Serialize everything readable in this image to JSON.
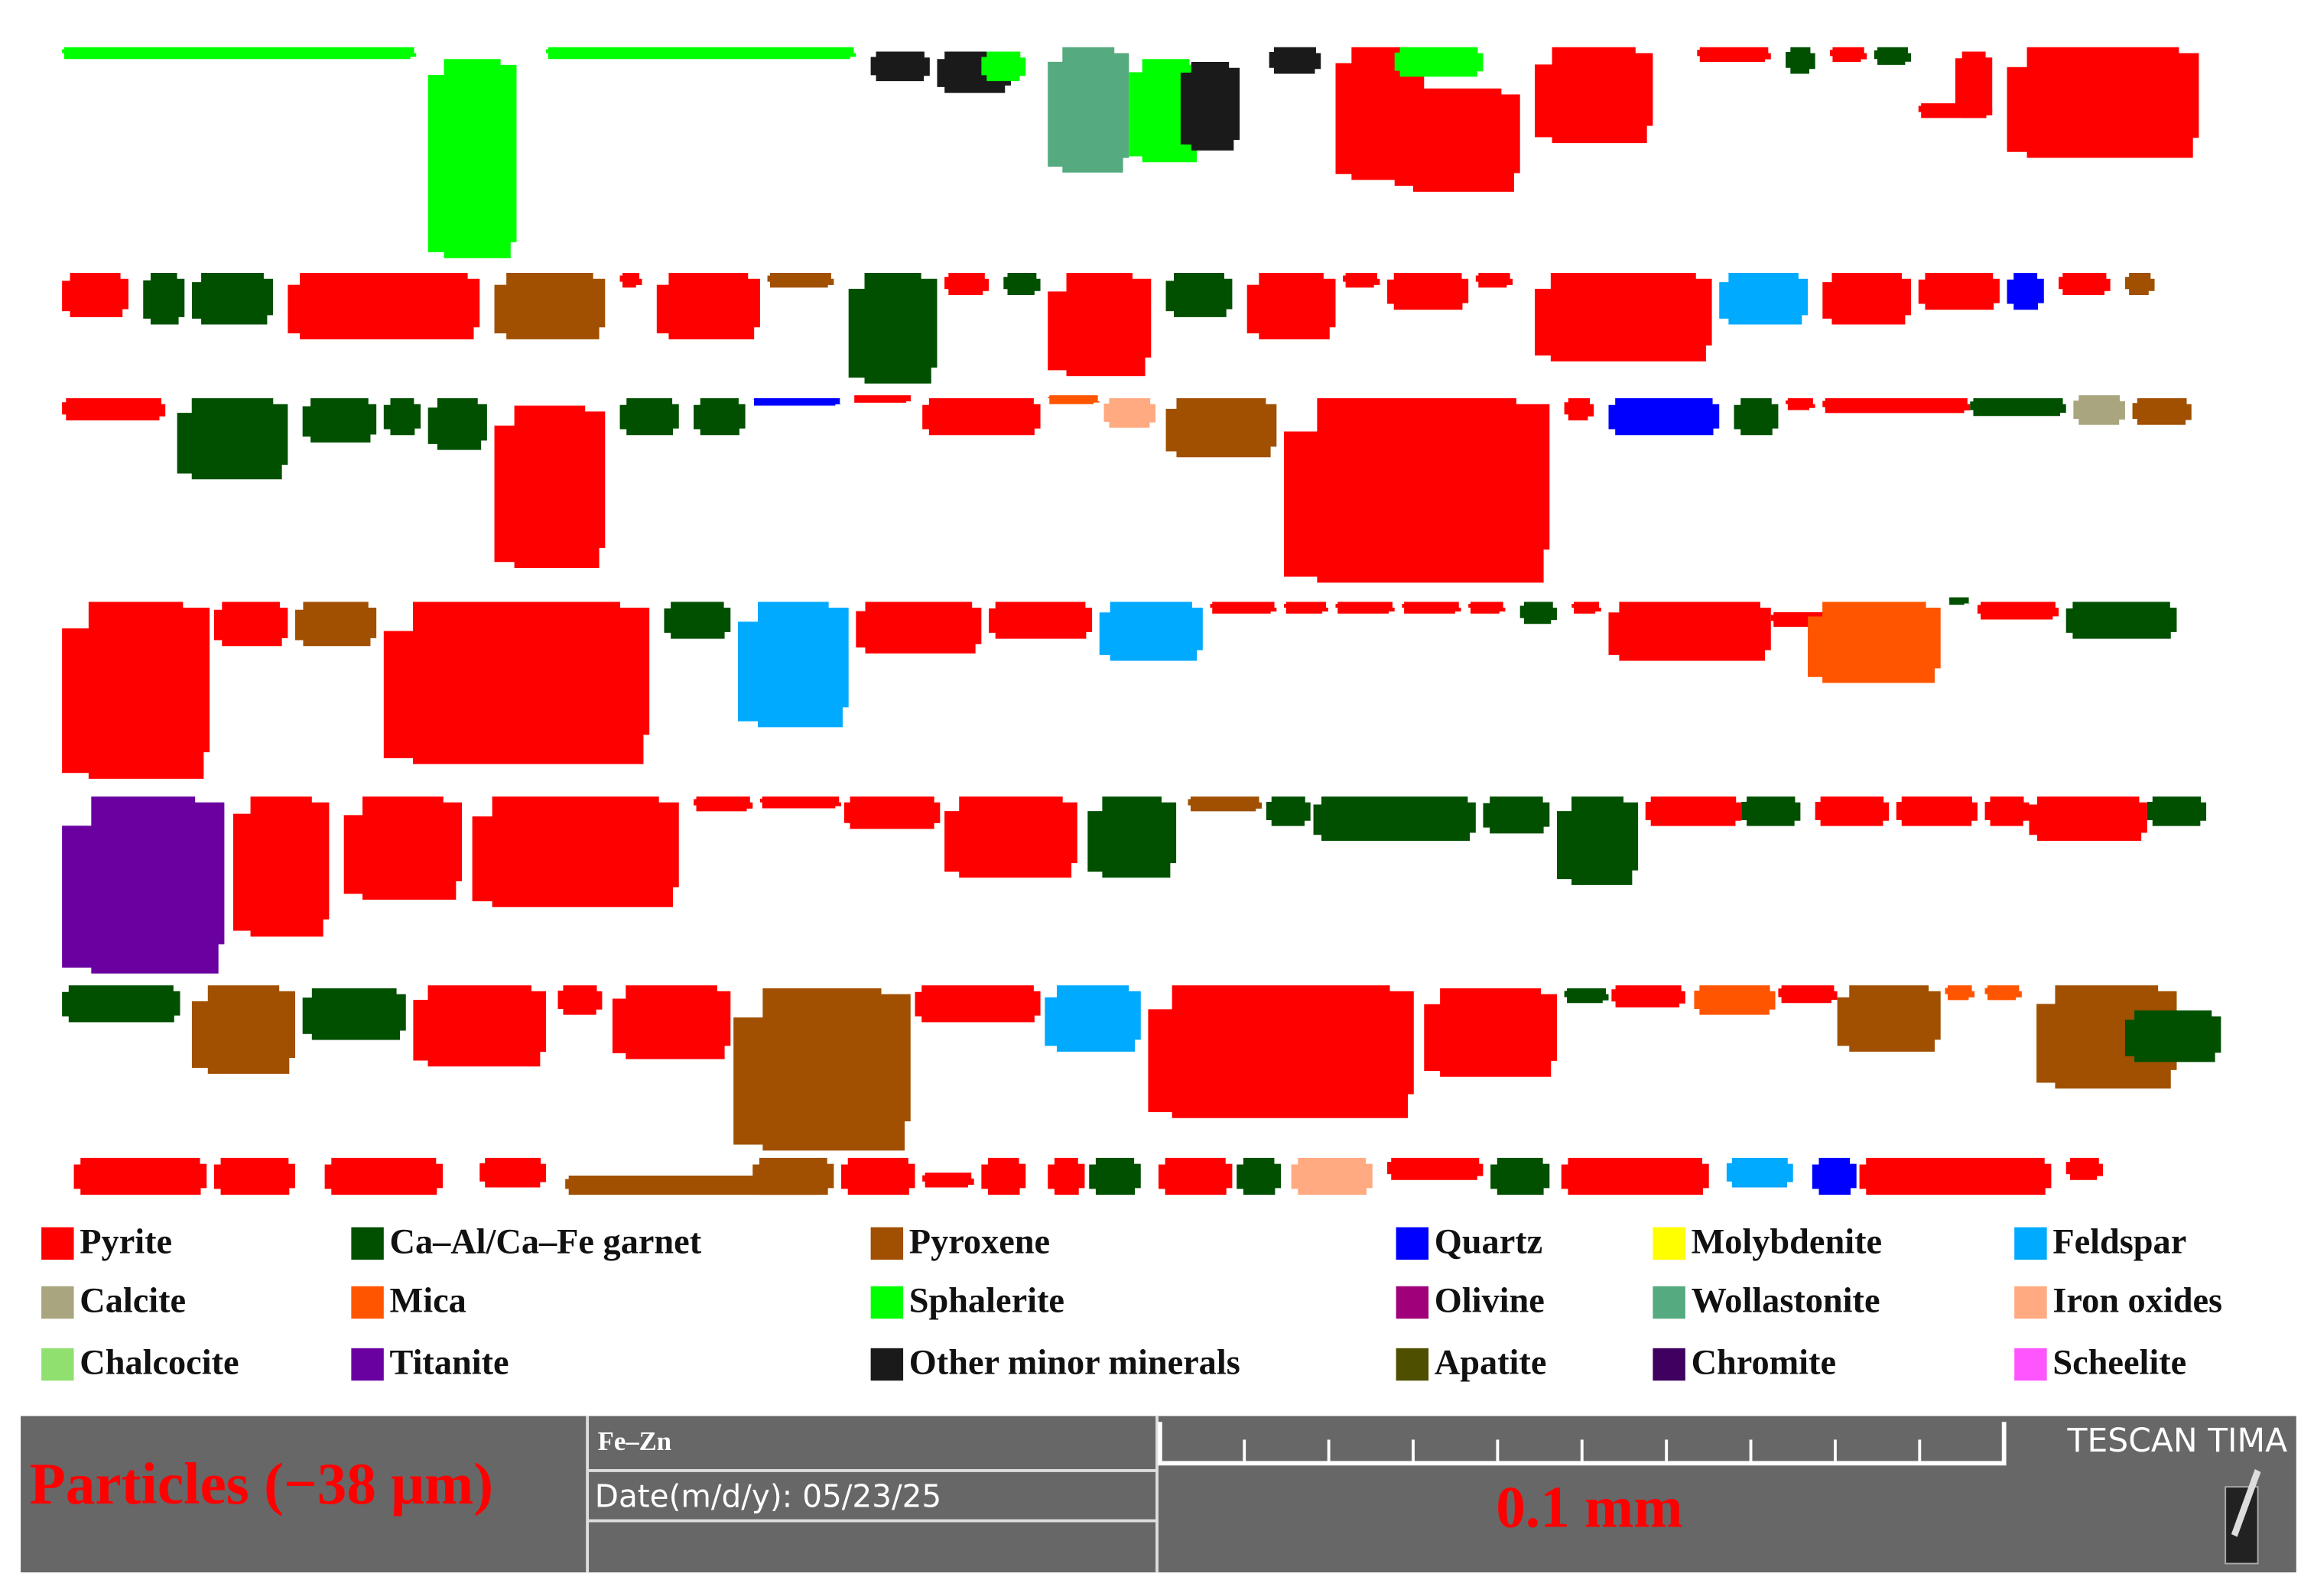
{
  "legend": [
    {
      "label": "Pyrite",
      "color": "#ff0000"
    },
    {
      "label": "Calcite",
      "color": "#a8a57f"
    },
    {
      "label": "Chalcocite",
      "color": "#90e070"
    },
    {
      "label": "Ca–Al/Ca–Fe garnet",
      "color": "#005000"
    },
    {
      "label": "Mica",
      "color": "#ff5500"
    },
    {
      "label": "Titanite",
      "color": "#6a00a0"
    },
    {
      "label": "Pyroxene",
      "color": "#a05000"
    },
    {
      "label": "Sphalerite",
      "color": "#00ff00"
    },
    {
      "label": "Other minor minerals",
      "color": "#1a1a1a"
    },
    {
      "label": "Quartz",
      "color": "#0000ff"
    },
    {
      "label": "Olivine",
      "color": "#a0007a"
    },
    {
      "label": "Apatite",
      "color": "#4f4f00"
    },
    {
      "label": "Molybdenite",
      "color": "#ffff00"
    },
    {
      "label": "Wollastonite",
      "color": "#55aa80"
    },
    {
      "label": "Chromite",
      "color": "#400060"
    },
    {
      "label": "Feldspar",
      "color": "#00aaff"
    },
    {
      "label": "Iron oxides",
      "color": "#ffaa80"
    },
    {
      "label": "Scheelite",
      "color": "#ff55ff"
    }
  ],
  "footer": {
    "title": "Particles (−38 μm)",
    "sample": "Fe–Zn",
    "date": "Date(m/d/y): 05/23/25",
    "scale": "0.1 mm",
    "brand": "TESCAN TIMA"
  }
}
